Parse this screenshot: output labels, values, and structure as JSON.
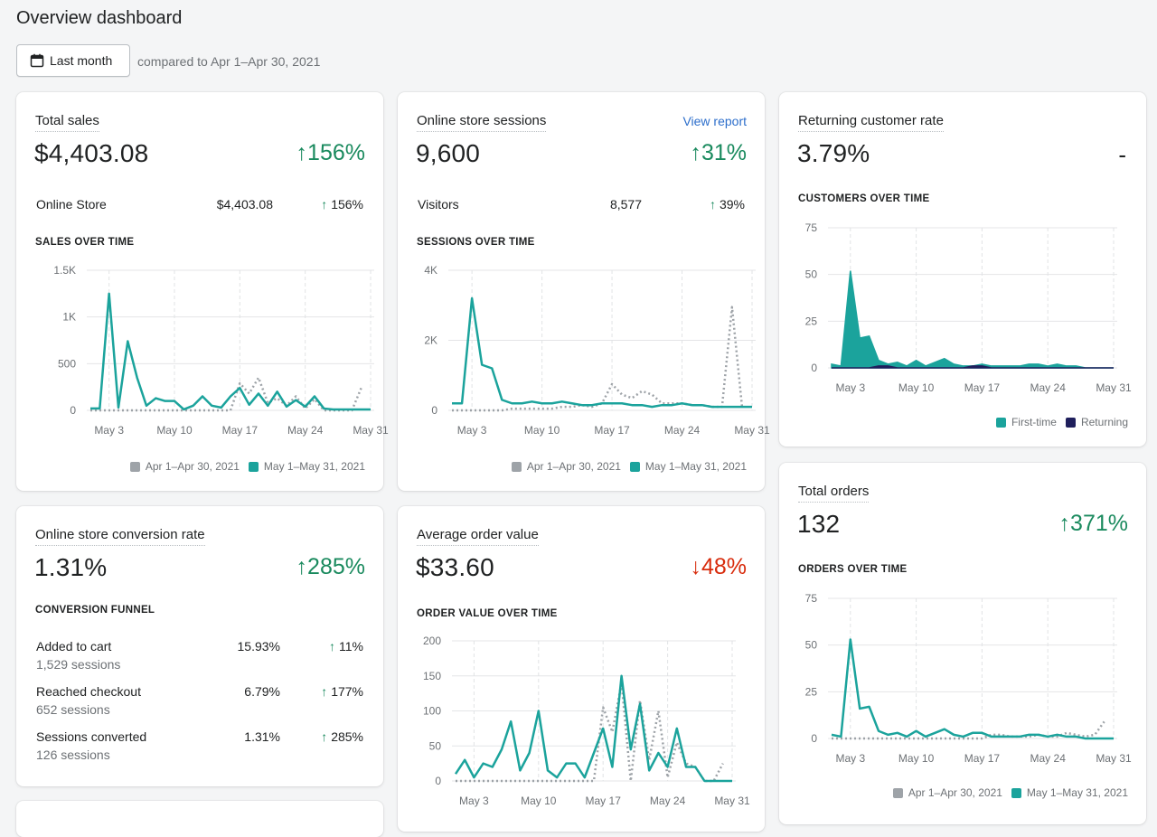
{
  "page": {
    "title": "Overview dashboard",
    "date_button": "Last month",
    "compare_text": "compared to Apr 1–Apr 30, 2021"
  },
  "colors": {
    "current": "#1ba39c",
    "previous": "#9ea3a8",
    "returning": "#1f1f5c",
    "up": "#1a8a5e",
    "down": "#d82c0d"
  },
  "legend": {
    "previous": "Apr 1–Apr 30, 2021",
    "current": "May 1–May 31, 2021",
    "first_time": "First-time",
    "returning": "Returning"
  },
  "total_sales": {
    "title": "Total sales",
    "value": "$4,403.08",
    "change": "156%",
    "row": {
      "label": "Online Store",
      "value": "$4,403.08",
      "change": "156%"
    },
    "chart_title": "SALES OVER TIME"
  },
  "sessions": {
    "title": "Online store sessions",
    "link": "View report",
    "value": "9,600",
    "change": "31%",
    "row": {
      "label": "Visitors",
      "value": "8,577",
      "change": "39%"
    },
    "chart_title": "SESSIONS OVER TIME"
  },
  "returning": {
    "title": "Returning customer rate",
    "value": "3.79%",
    "change": "-",
    "chart_title": "CUSTOMERS OVER TIME"
  },
  "conversion": {
    "title": "Online store conversion rate",
    "value": "1.31%",
    "change": "285%",
    "funnel_title": "CONVERSION FUNNEL",
    "rows": [
      {
        "label": "Added to cart",
        "sub": "1,529 sessions",
        "value": "15.93%",
        "change": "11%"
      },
      {
        "label": "Reached checkout",
        "sub": "652 sessions",
        "value": "6.79%",
        "change": "177%"
      },
      {
        "label": "Sessions converted",
        "sub": "126 sessions",
        "value": "1.31%",
        "change": "285%"
      }
    ]
  },
  "aov": {
    "title": "Average order value",
    "value": "$33.60",
    "change": "48%",
    "chart_title": "ORDER VALUE OVER TIME"
  },
  "orders": {
    "title": "Total orders",
    "value": "132",
    "change": "371%",
    "chart_title": "ORDERS OVER TIME"
  },
  "chart_data": [
    {
      "id": "sales",
      "type": "line",
      "title": "SALES OVER TIME",
      "ylim": [
        0,
        1500
      ],
      "yticks": [
        0,
        500,
        1000,
        1500
      ],
      "ytick_labels": [
        "0",
        "500",
        "1K",
        "1.5K"
      ],
      "xticks": [
        3,
        10,
        17,
        24,
        31
      ],
      "xtick_labels": [
        "May 3",
        "May 10",
        "May 17",
        "May 24",
        "May 31"
      ],
      "series": [
        {
          "name": "May 1–May 31, 2021",
          "role": "current",
          "values": [
            20,
            20,
            1250,
            30,
            740,
            350,
            50,
            130,
            100,
            100,
            10,
            50,
            150,
            50,
            30,
            150,
            240,
            60,
            180,
            50,
            200,
            40,
            110,
            40,
            150,
            20,
            10,
            10,
            10,
            10,
            10
          ]
        },
        {
          "name": "Apr 1–Apr 30, 2021",
          "role": "previous",
          "values": [
            0,
            0,
            0,
            0,
            0,
            0,
            0,
            0,
            0,
            0,
            0,
            0,
            0,
            0,
            0,
            0,
            290,
            180,
            350,
            80,
            130,
            50,
            150,
            20,
            120,
            0,
            0,
            0,
            0,
            240
          ]
        }
      ]
    },
    {
      "id": "sessions",
      "type": "line",
      "title": "SESSIONS OVER TIME",
      "ylim": [
        0,
        4000
      ],
      "yticks": [
        0,
        2000,
        4000
      ],
      "ytick_labels": [
        "0",
        "2K",
        "4K"
      ],
      "xticks": [
        3,
        10,
        17,
        24,
        31
      ],
      "xtick_labels": [
        "May 3",
        "May 10",
        "May 17",
        "May 24",
        "May 31"
      ],
      "series": [
        {
          "name": "May 1–May 31, 2021",
          "role": "current",
          "values": [
            200,
            200,
            3200,
            1300,
            1200,
            300,
            200,
            200,
            250,
            200,
            200,
            250,
            200,
            150,
            150,
            200,
            200,
            200,
            150,
            150,
            100,
            150,
            150,
            200,
            150,
            150,
            100,
            100,
            100,
            100,
            100
          ]
        },
        {
          "name": "Apr 1–Apr 30, 2021",
          "role": "previous",
          "values": [
            0,
            0,
            0,
            0,
            0,
            0,
            50,
            50,
            50,
            50,
            50,
            100,
            100,
            150,
            100,
            200,
            750,
            450,
            350,
            550,
            450,
            200,
            200,
            200,
            150,
            150,
            100,
            100,
            2950,
            100
          ]
        }
      ]
    },
    {
      "id": "customers",
      "type": "area",
      "title": "CUSTOMERS OVER TIME",
      "ylim": [
        0,
        75
      ],
      "yticks": [
        0,
        25,
        50,
        75
      ],
      "ytick_labels": [
        "0",
        "25",
        "50",
        "75"
      ],
      "xticks": [
        3,
        10,
        17,
        24,
        31
      ],
      "xtick_labels": [
        "May 3",
        "May 10",
        "May 17",
        "May 24",
        "May 31"
      ],
      "series": [
        {
          "name": "First-time",
          "role": "current",
          "values": [
            2,
            1,
            52,
            16,
            17,
            4,
            2,
            3,
            1,
            4,
            1,
            3,
            5,
            2,
            1,
            1,
            2,
            1,
            1,
            1,
            1,
            2,
            2,
            1,
            2,
            1,
            1,
            0,
            0,
            0,
            0
          ]
        },
        {
          "name": "Returning",
          "role": "returning",
          "values": [
            0,
            0,
            0,
            0,
            0,
            1,
            1,
            0,
            0,
            0,
            0,
            0,
            0,
            0,
            0,
            1,
            1,
            0,
            0,
            0,
            0,
            0,
            0,
            0,
            0,
            0,
            0,
            0,
            0,
            0,
            0
          ]
        }
      ]
    },
    {
      "id": "aov",
      "type": "line",
      "title": "ORDER VALUE OVER TIME",
      "ylim": [
        0,
        200
      ],
      "yticks": [
        0,
        50,
        100,
        150,
        200
      ],
      "ytick_labels": [
        "0",
        "50",
        "100",
        "150",
        "200"
      ],
      "xticks": [
        3,
        10,
        17,
        24,
        31
      ],
      "xtick_labels": [
        "May 3",
        "May 10",
        "May 17",
        "May 24",
        "May 31"
      ],
      "series": [
        {
          "name": "May 1–May 31, 2021",
          "role": "current",
          "values": [
            10,
            30,
            5,
            25,
            20,
            45,
            85,
            15,
            40,
            100,
            15,
            5,
            25,
            25,
            5,
            40,
            75,
            20,
            150,
            45,
            110,
            15,
            40,
            20,
            75,
            20,
            20,
            0,
            0,
            0,
            0
          ]
        },
        {
          "name": "Apr 1–Apr 30, 2021",
          "role": "previous",
          "values": [
            0,
            0,
            0,
            0,
            0,
            0,
            0,
            0,
            0,
            0,
            0,
            0,
            0,
            0,
            0,
            0,
            105,
            70,
            140,
            0,
            115,
            30,
            100,
            5,
            55,
            25,
            20,
            0,
            0,
            25
          ]
        }
      ]
    },
    {
      "id": "orders",
      "type": "line",
      "title": "ORDERS OVER TIME",
      "ylim": [
        0,
        75
      ],
      "yticks": [
        0,
        25,
        50,
        75
      ],
      "ytick_labels": [
        "0",
        "25",
        "50",
        "75"
      ],
      "xticks": [
        3,
        10,
        17,
        24,
        31
      ],
      "xtick_labels": [
        "May 3",
        "May 10",
        "May 17",
        "May 24",
        "May 31"
      ],
      "series": [
        {
          "name": "May 1–May 31, 2021",
          "role": "current",
          "values": [
            2,
            1,
            53,
            16,
            17,
            4,
            2,
            3,
            1,
            4,
            1,
            3,
            5,
            2,
            1,
            3,
            3,
            1,
            1,
            1,
            1,
            2,
            2,
            1,
            2,
            1,
            1,
            0,
            0,
            0,
            0
          ]
        },
        {
          "name": "Apr 1–Apr 30, 2021",
          "role": "previous",
          "values": [
            0,
            0,
            0,
            0,
            0,
            0,
            0,
            0,
            0,
            0,
            0,
            0,
            0,
            0,
            0,
            0,
            0,
            2,
            2,
            1,
            1,
            1,
            2,
            1,
            1,
            3,
            2,
            1,
            2,
            9
          ]
        }
      ]
    }
  ]
}
